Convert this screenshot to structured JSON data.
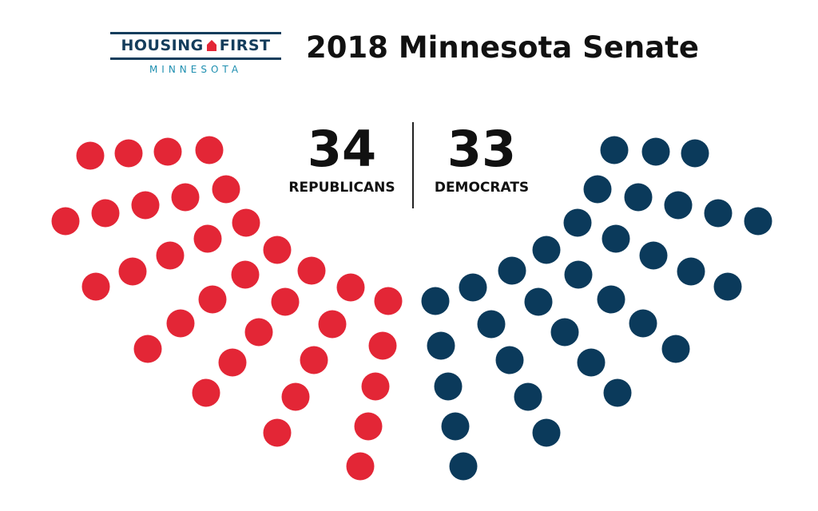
{
  "logo": {
    "word_left": "HOUSING",
    "word_right": "FIRST",
    "sub": "MINNESOTA",
    "icon": "house-icon",
    "navy": "#143d5c",
    "red": "#e32636",
    "teal": "#1f8fb0"
  },
  "title": "2018 Minnesota Senate",
  "colors": {
    "republican": "#e32636",
    "democrat": "#0b3a5b"
  },
  "chart_data": {
    "type": "parliament",
    "title": "2018 Minnesota Senate",
    "total_seats": 67,
    "series": [
      {
        "name": "REPUBLICANS",
        "value": 34,
        "color": "#e32636"
      },
      {
        "name": "DEMOCRATS",
        "value": 33,
        "color": "#0b3a5b"
      }
    ]
  }
}
